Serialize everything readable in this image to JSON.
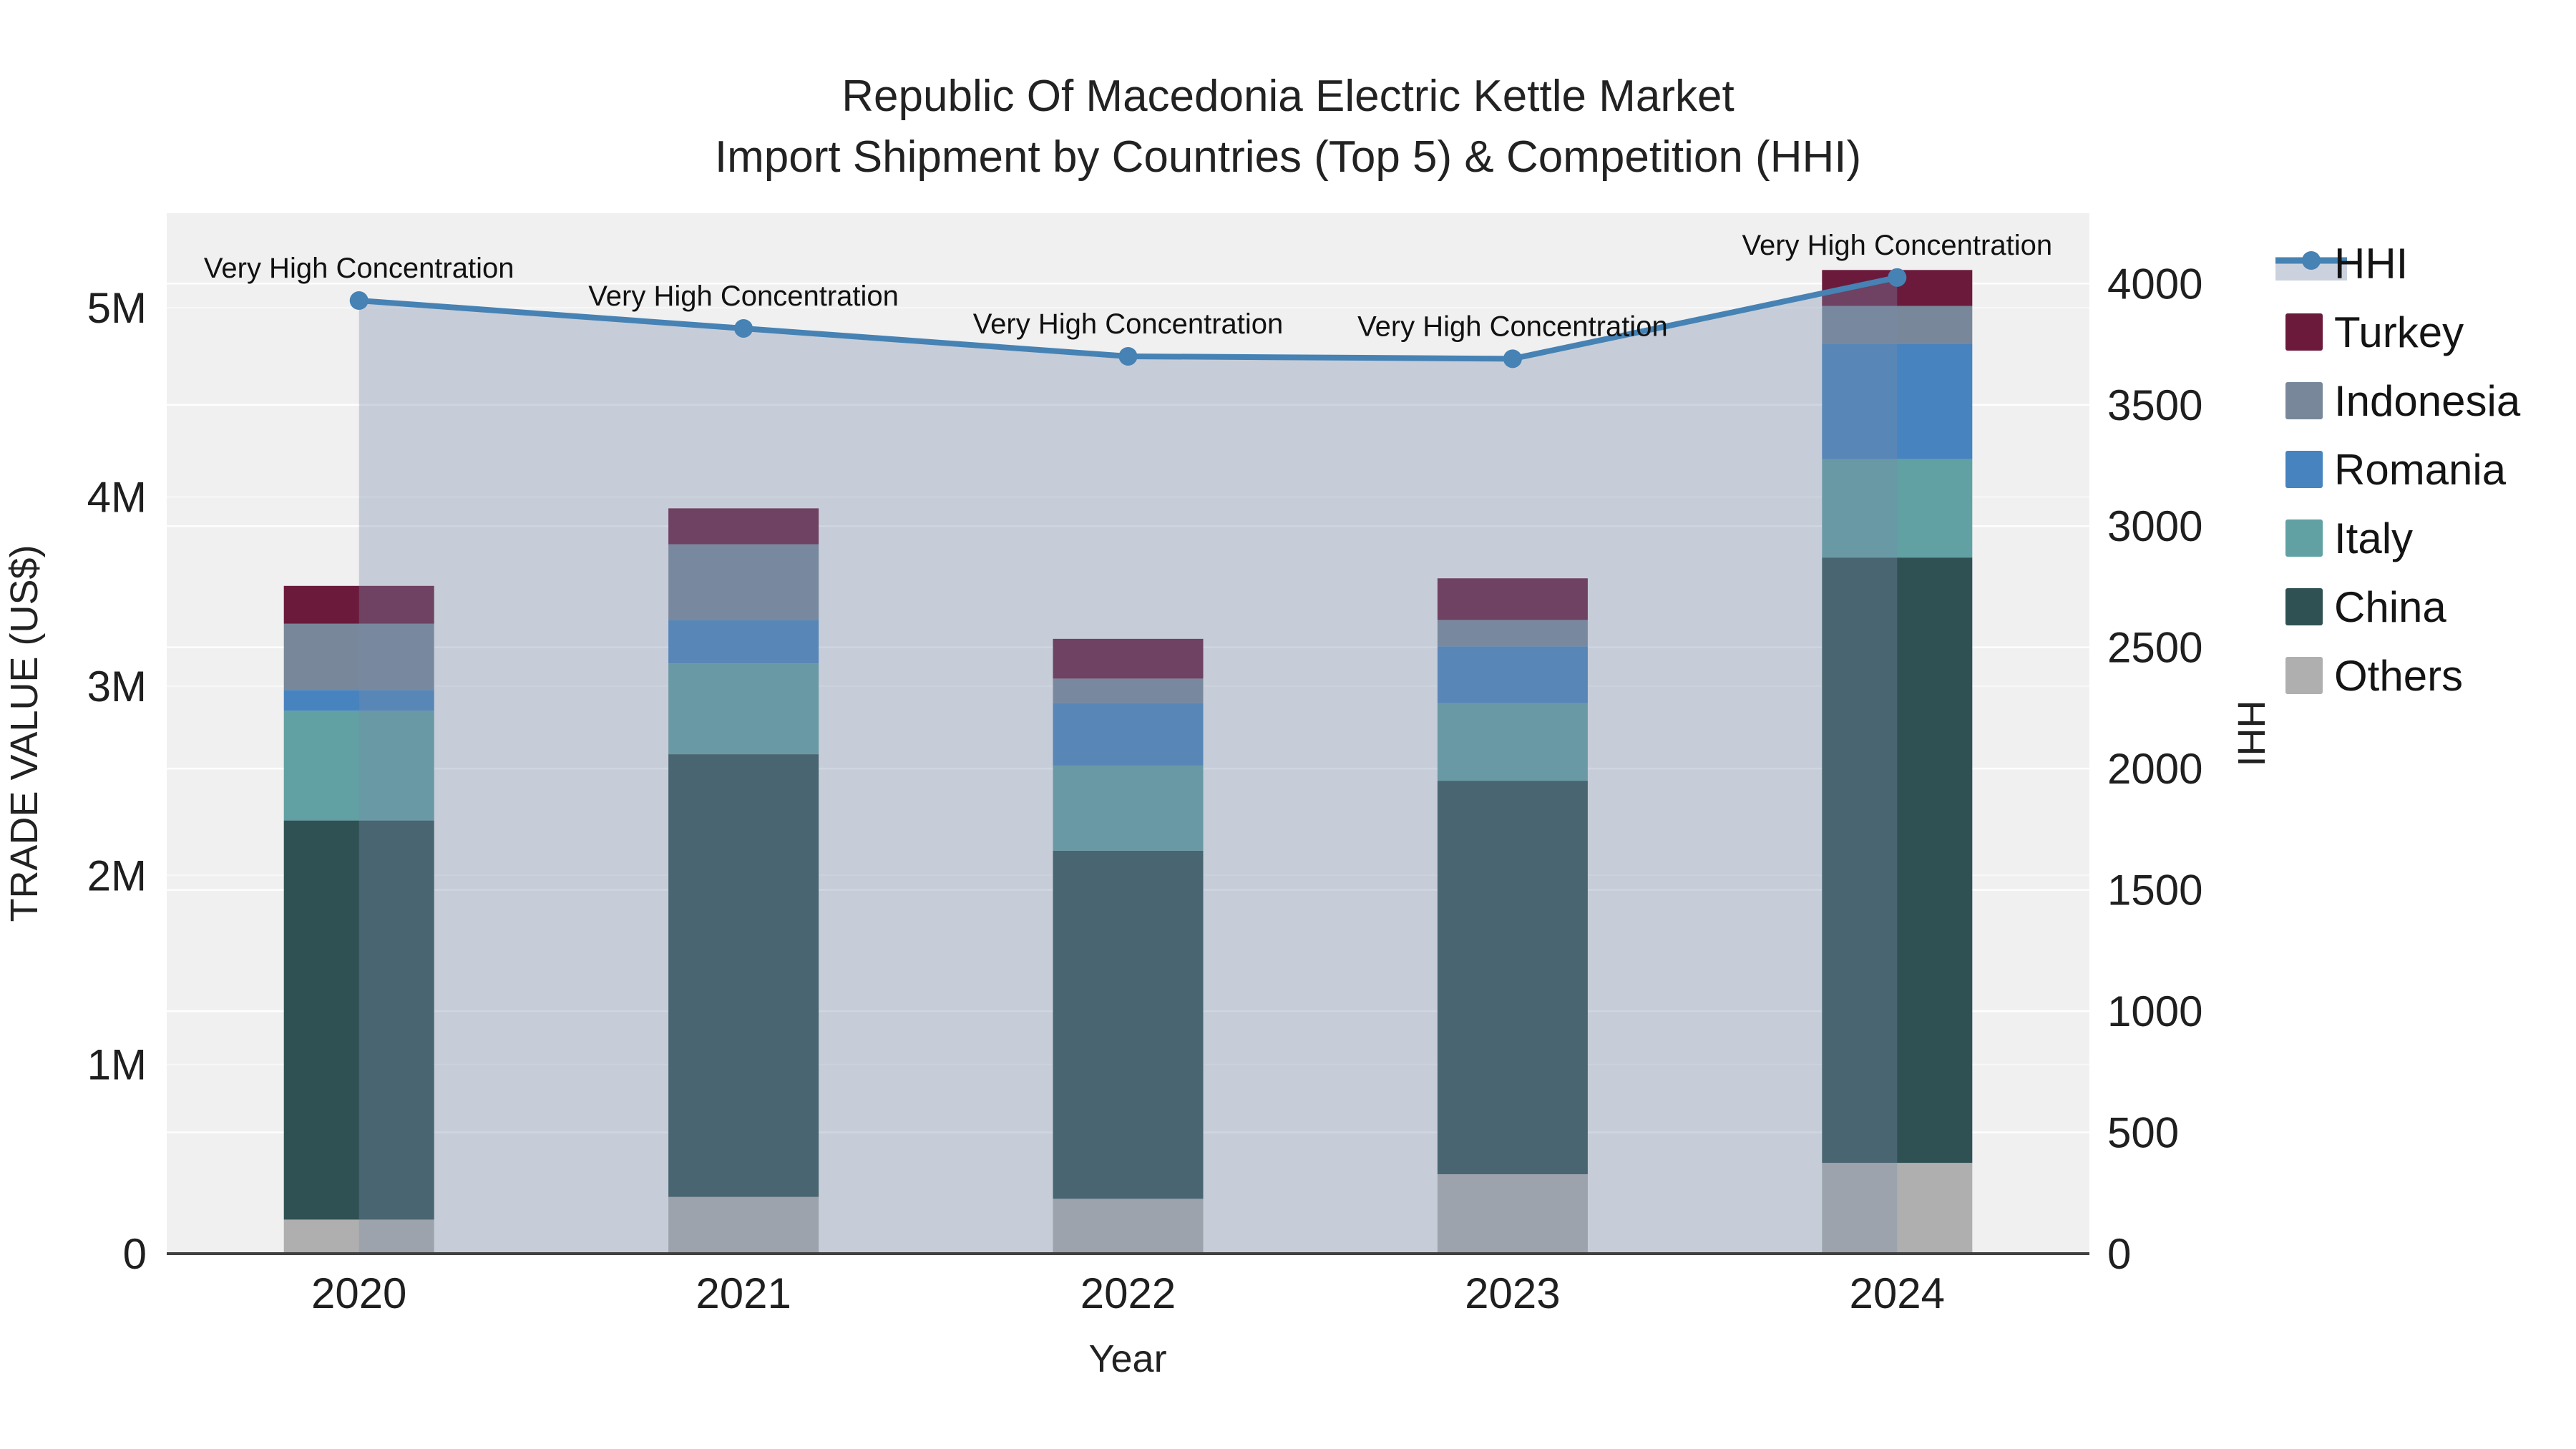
{
  "title": {
    "line1": "Republic Of Macedonia Electric Kettle Market",
    "line2": "Import Shipment by Countries (Top 5) & Competition (HHI)"
  },
  "axes": {
    "x": {
      "label": "Year",
      "ticks": [
        "2020",
        "2021",
        "2022",
        "2023",
        "2024"
      ]
    },
    "y_left": {
      "label": "TRADE VALUE (US$)",
      "ticks": [
        {
          "value": 0,
          "label": "0"
        },
        {
          "value": 1000000,
          "label": "1M"
        },
        {
          "value": 2000000,
          "label": "2M"
        },
        {
          "value": 3000000,
          "label": "3M"
        },
        {
          "value": 4000000,
          "label": "4M"
        },
        {
          "value": 5000000,
          "label": "5M"
        }
      ]
    },
    "y_right": {
      "label": "HHI",
      "ticks": [
        {
          "value": 0,
          "label": "0"
        },
        {
          "value": 500,
          "label": "500"
        },
        {
          "value": 1000,
          "label": "1000"
        },
        {
          "value": 1500,
          "label": "1500"
        },
        {
          "value": 2000,
          "label": "2000"
        },
        {
          "value": 2500,
          "label": "2500"
        },
        {
          "value": 3000,
          "label": "3000"
        },
        {
          "value": 3500,
          "label": "3500"
        },
        {
          "value": 4000,
          "label": "4000"
        }
      ]
    }
  },
  "legend": {
    "items": [
      {
        "label": "HHI",
        "marker": "line",
        "color": "#4682B4"
      },
      {
        "label": "Turkey",
        "marker": "box",
        "color": "#6B1A3C"
      },
      {
        "label": "Indonesia",
        "marker": "box",
        "color": "#78889A"
      },
      {
        "label": "Romania",
        "marker": "box",
        "color": "#4783BE"
      },
      {
        "label": "Italy",
        "marker": "box",
        "color": "#61A0A3"
      },
      {
        "label": "China",
        "marker": "box",
        "color": "#2F5153"
      },
      {
        "label": "Others",
        "marker": "box",
        "color": "#AFAFAF"
      }
    ]
  },
  "chart_data": {
    "type": "bar+line",
    "title": "Republic Of Macedonia Electric Kettle Market Import Shipment by Countries (Top 5) & Competition (HHI)",
    "xlabel": "Year",
    "ylabel": "TRADE VALUE (US$)",
    "ylabel_right": "HHI",
    "categories": [
      "2020",
      "2021",
      "2022",
      "2023",
      "2024"
    ],
    "stack_order_bottom_to_top": [
      "Others",
      "China",
      "Italy",
      "Romania",
      "Indonesia",
      "Turkey"
    ],
    "series": [
      {
        "name": "Others",
        "color": "#AFAFAF",
        "values": [
          180000,
          300000,
          290000,
          420000,
          480000
        ]
      },
      {
        "name": "China",
        "color": "#2F5153",
        "values": [
          2110000,
          2340000,
          1840000,
          2080000,
          3200000
        ]
      },
      {
        "name": "Italy",
        "color": "#61A0A3",
        "values": [
          580000,
          480000,
          450000,
          410000,
          520000
        ]
      },
      {
        "name": "Romania",
        "color": "#4783BE",
        "values": [
          110000,
          230000,
          330000,
          300000,
          610000
        ]
      },
      {
        "name": "Indonesia",
        "color": "#78889A",
        "values": [
          350000,
          400000,
          130000,
          140000,
          200000
        ]
      },
      {
        "name": "Turkey",
        "color": "#6B1A3C",
        "values": [
          200000,
          190000,
          210000,
          220000,
          190000
        ]
      }
    ],
    "bar_totals": [
      3530000,
      3940000,
      3250000,
      3570000,
      5200000
    ],
    "line_series": {
      "name": "HHI",
      "axis": "right",
      "color": "#4682B4",
      "area_fill": "rgba(120,140,170,0.35)",
      "values": [
        3930,
        3815,
        3700,
        3690,
        4025
      ]
    },
    "annotation_text": "Very High Concentration",
    "annotations_per_point": [
      "Very High Concentration",
      "Very High Concentration",
      "Very High Concentration",
      "Very High Concentration",
      "Very High Concentration"
    ],
    "ylim": [
      0,
      5500000
    ],
    "y2lim": [
      0,
      4290
    ],
    "grid": true,
    "legend_position": "right"
  },
  "colors": {
    "plot_bg": "#F0F0F1",
    "grid_major": "#FFFFFF",
    "axis_line": "#404040",
    "area_tint": "rgba(120,140,170,0.35)",
    "legend_band": "#CBD2DE",
    "text": "#1F1F1F"
  }
}
